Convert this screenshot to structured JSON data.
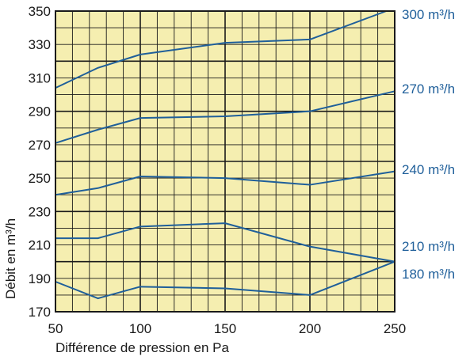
{
  "chart_data": {
    "type": "line",
    "title": "",
    "xlabel": "Différence de pression en Pa",
    "ylabel": "Débit en m³/h",
    "xlim": [
      50,
      250
    ],
    "ylim": [
      170,
      350
    ],
    "x_ticks": [
      "50",
      "100",
      "150",
      "200",
      "250"
    ],
    "y_ticks": [
      "170",
      "190",
      "210",
      "230",
      "250",
      "270",
      "290",
      "310",
      "330",
      "350"
    ],
    "grid": true,
    "background_color": "#f5eeb0",
    "line_color": "#1f5f9a",
    "series": [
      {
        "name": "300 m³/h",
        "x": [
          50,
          75,
          100,
          150,
          200,
          245
        ],
        "y": [
          304,
          316,
          324,
          331,
          333,
          350
        ]
      },
      {
        "name": "270 m³/h",
        "x": [
          50,
          75,
          100,
          150,
          200,
          250
        ],
        "y": [
          271,
          279,
          286,
          287,
          290,
          302
        ]
      },
      {
        "name": "240 m³/h",
        "x": [
          50,
          75,
          100,
          150,
          200,
          250
        ],
        "y": [
          240,
          244,
          251,
          250,
          246,
          254
        ]
      },
      {
        "name": "210 m³/h",
        "x": [
          50,
          75,
          100,
          150,
          200,
          250
        ],
        "y": [
          214,
          214,
          221,
          223,
          209,
          200
        ]
      },
      {
        "name": "180 m³/h",
        "x": [
          50,
          75,
          100,
          150,
          200,
          250
        ],
        "y": [
          188,
          178,
          185,
          184,
          180,
          200
        ]
      }
    ]
  }
}
